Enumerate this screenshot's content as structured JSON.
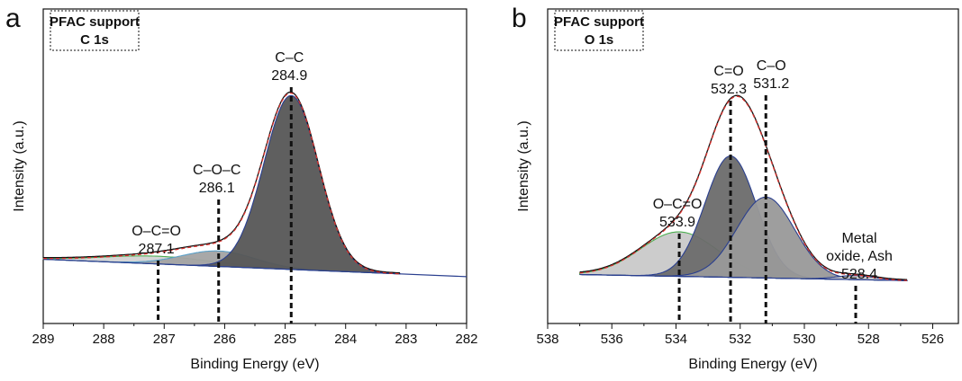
{
  "chart_data": [
    {
      "panel": "a",
      "type": "line",
      "box_lines": [
        "PFAC support",
        "C 1s"
      ],
      "xlabel": "Binding Energy (eV)",
      "ylabel": "Intensity (a.u.)",
      "xlim": [
        289,
        282
      ],
      "x_reversed": true,
      "ylim": [
        0,
        1
      ],
      "xticks": [
        289,
        288,
        287,
        286,
        285,
        284,
        283,
        282
      ],
      "baseline": {
        "x": [
          289,
          282
        ],
        "y": [
          0.1,
          0.01
        ]
      },
      "envelope_extent": [
        289,
        283.1
      ],
      "components": [
        {
          "center": 287.1,
          "height": 0.04,
          "width": 0.9,
          "fill": "#d3d3d3",
          "stroke": "#4caf50"
        },
        {
          "center": 286.1,
          "height": 0.08,
          "width": 0.6,
          "fill": "#a3a3a3",
          "stroke": "#5aa0c8"
        },
        {
          "center": 284.9,
          "height": 0.9,
          "width": 0.45,
          "fill": "#565656",
          "stroke": "#2a3f8f"
        }
      ],
      "peaks": [
        {
          "label": "O–C=O",
          "value": "287.1",
          "x": 287.1
        },
        {
          "label": "C–O–C",
          "value": "286.1",
          "x": 286.1
        },
        {
          "label": "C–C",
          "value": "284.9",
          "x": 284.9
        }
      ]
    },
    {
      "panel": "b",
      "type": "line",
      "box_lines": [
        "PFAC support",
        "O 1s"
      ],
      "xlabel": "Binding Energy (eV)",
      "ylabel": "Intensity (a.u.)",
      "xlim": [
        538,
        525.2
      ],
      "x_reversed": true,
      "ylim": [
        0,
        1
      ],
      "xticks": [
        538,
        536,
        534,
        532,
        530,
        528,
        526
      ],
      "baseline": {
        "x": [
          537,
          526.8
        ],
        "y": [
          0.02,
          -0.01
        ]
      },
      "envelope_extent": [
        537,
        526.8
      ],
      "components": [
        {
          "center": 533.9,
          "height": 0.22,
          "width": 1.2,
          "fill": "#c9c9c9",
          "stroke": "#4caf50"
        },
        {
          "center": 532.3,
          "height": 0.6,
          "width": 0.8,
          "fill": "#6b6b6b",
          "stroke": "#2a3f8f"
        },
        {
          "center": 531.2,
          "height": 0.4,
          "width": 0.9,
          "fill": "#999999",
          "stroke": "#2a3f8f"
        },
        {
          "center": 528.4,
          "height": 0.02,
          "width": 0.6,
          "fill": "#c9c9c9",
          "stroke": "#2a3f8f"
        }
      ],
      "peaks": [
        {
          "label": "O–C=O",
          "value": "533.9",
          "x": 533.9
        },
        {
          "label": "C=O",
          "value": "532.3",
          "x": 532.3
        },
        {
          "label": "C–O",
          "value": "531.2",
          "x": 531.2
        },
        {
          "label": "Metal oxide, Ash",
          "label_lines": [
            "Metal",
            "oxide, Ash"
          ],
          "value": "528.4",
          "x": 528.4
        }
      ]
    }
  ],
  "colors": {
    "envelope_fit": "#d9302c",
    "raw_data": "#111111",
    "baseline": "#2a3f8f",
    "peak_marker": "#111111"
  },
  "panel_letters": [
    "a",
    "b"
  ]
}
